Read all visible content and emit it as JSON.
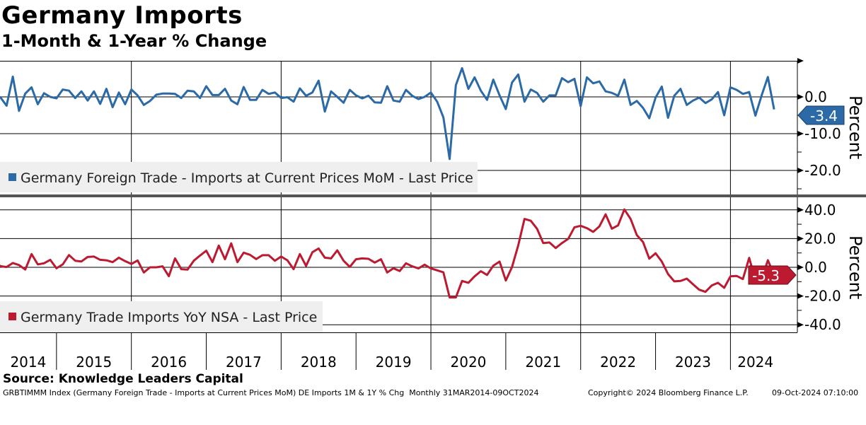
{
  "title": "Germany Imports",
  "subtitle": "1-Month & 1-Year % Change",
  "source": "Source: Knowledge Leaders Capital",
  "footer": {
    "description": "GRBTIMMM Index (Germany Foreign Trade - Imports at Current Prices MoM) DE Imports 1M & 1Y % Chg  Monthly 31MAR2014-09OCT2024",
    "copyright": "Copyright© 2024 Bloomberg Finance L.P.",
    "timestamp": "09-Oct-2024 07:10:00"
  },
  "colors": {
    "mom": "#2b6aa6",
    "yoy": "#bc1a30",
    "legend_bg": "#efefef",
    "separator": "#555555"
  },
  "chart_data": [
    {
      "type": "line",
      "name": "top-panel",
      "start": "2014-03",
      "frequency": "monthly",
      "series": [
        {
          "name": "Germany Foreign Trade - Imports at Current Prices MoM - Last Price",
          "last_value_label": "-3.4",
          "values": [
            -0.6,
            -0.1,
            -2.4,
            5.5,
            -3.8,
            0.9,
            2.6,
            -2,
            1,
            0,
            -0.4,
            2,
            1.7,
            -0.3,
            1.5,
            -1,
            1.5,
            -1.9,
            2.2,
            -2.8,
            1.2,
            -2,
            2,
            0.4,
            -2.2,
            -1.1,
            0.6,
            0.9,
            0.9,
            0.8,
            -0.3,
            1.7,
            1.5,
            -0.3,
            2.9,
            0.5,
            0.5,
            2.2,
            -1,
            -2,
            2.7,
            -0.8,
            -0.8,
            1.9,
            0.8,
            1.2,
            -0.3,
            -0.1,
            -1.3,
            2.3,
            0.3,
            1.2,
            4.4,
            -4,
            1.5,
            0,
            -1.6,
            1.9,
            0.4,
            -0.4,
            0.3,
            -1.5,
            -1.6,
            2.9,
            -1,
            -1.3,
            1.9,
            0.3,
            -0.6,
            0,
            1.2,
            -1.3,
            -5.6,
            -16.9,
            3.2,
            7.8,
            2.2,
            5.3,
            1.7,
            -0.8,
            4.7,
            0.4,
            -3.3,
            3.9,
            6.1,
            -1.3,
            2,
            1.1,
            -1.3,
            0.4,
            0.4,
            5.1,
            4,
            4.9,
            -2.5,
            5.3,
            3.7,
            4.2,
            1.5,
            1.1,
            0.3,
            4.7,
            -2.2,
            -1.1,
            -3,
            -5.8,
            -0.2,
            2.8,
            -5.7,
            0.3,
            2.2,
            -2.2,
            -1,
            -0.2,
            -1.7,
            -0.7,
            1.3,
            -5,
            2.6,
            1.9,
            0.8,
            1.3,
            -5.1,
            0.4,
            5.4,
            -3.4
          ]
        }
      ],
      "ylabel": "Percent",
      "yticks": [
        "0.0",
        "-10.0",
        "-20.0"
      ],
      "ytick_values": [
        0,
        -10,
        -20
      ],
      "ylim": [
        -26.5,
        9.8
      ]
    },
    {
      "type": "line",
      "name": "bottom-panel",
      "start": "2014-03",
      "frequency": "monthly",
      "series": [
        {
          "name": "Germany Trade Imports YoY NSA - Last Price",
          "last_value_label": "-5.3",
          "values": [
            4.6,
            0.8,
            0.2,
            3,
            1.6,
            -1.6,
            9.2,
            2,
            2.8,
            5.2,
            -0.7,
            2,
            8.5,
            4.6,
            4.1,
            7.2,
            7.5,
            5.2,
            4.9,
            3.6,
            6.7,
            4.3,
            2.3,
            4.8,
            -3.6,
            0,
            0,
            0.7,
            -6.2,
            6.2,
            -1.3,
            -1.6,
            4.6,
            8.2,
            11.6,
            3.6,
            15.1,
            5.6,
            16.7,
            3.6,
            10.2,
            8.7,
            5.7,
            8.4,
            8.4,
            4.6,
            7.5,
            4.9,
            -1.3,
            9.2,
            1,
            10.5,
            13.1,
            6.7,
            6.2,
            11.8,
            4.6,
            0.3,
            5.6,
            6.2,
            5.9,
            3.3,
            5.6,
            -3.6,
            -0.7,
            -2.6,
            2.8,
            0.7,
            -0.8,
            1.8,
            -0.8,
            -2.1,
            -3.5,
            -21,
            -21,
            -9.5,
            -10.8,
            -6.3,
            -2.7,
            -5.3,
            1.1,
            4,
            -9.2,
            0.2,
            15.3,
            33.7,
            32.4,
            26.9,
            16.9,
            17.3,
            13.4,
            16.9,
            19.8,
            27.9,
            28.9,
            27.3,
            24.7,
            28.5,
            36.9,
            26.9,
            29.2,
            40.3,
            33.7,
            22.4,
            17.6,
            6,
            9.8,
            4,
            -4.7,
            -9.8,
            -9.5,
            -7.9,
            -11.8,
            -15.6,
            -17.1,
            -12.7,
            -10.8,
            -14.3,
            -6.3,
            -6,
            -8.2,
            6.6,
            -9.2,
            -8.5,
            5,
            -5.3
          ]
        }
      ],
      "ylabel": "Percent",
      "yticks": [
        "40.0",
        "20.0",
        "0.0",
        "-20.0",
        "-40.0"
      ],
      "ytick_values": [
        40,
        20,
        0,
        -20,
        -40
      ],
      "ylim": [
        -45,
        48
      ]
    }
  ],
  "x_axis": {
    "years": [
      "2014",
      "2015",
      "2016",
      "2017",
      "2018",
      "2019",
      "2020",
      "2021",
      "2022",
      "2023",
      "2024"
    ],
    "gridline_years": [
      2016,
      2018,
      2020,
      2022,
      2024
    ]
  }
}
